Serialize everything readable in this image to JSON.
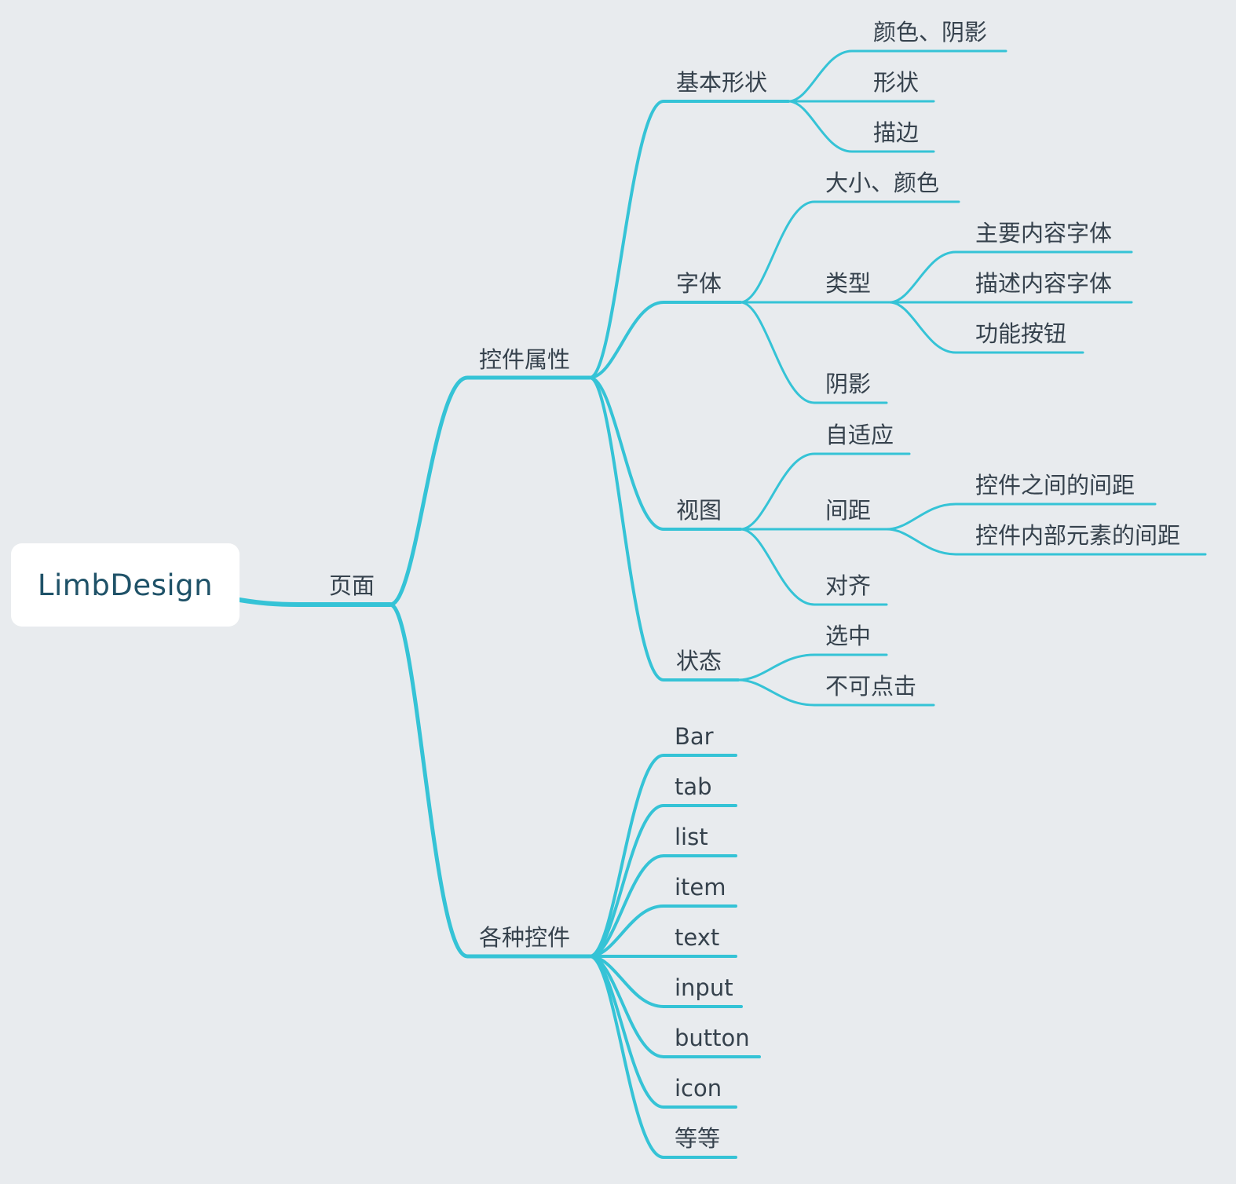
{
  "colors": {
    "background": "#e8ebee",
    "branch": "#35c3d6",
    "root_fill": "#ffffff",
    "root_text": "#1f5268",
    "label_text": "#36424d"
  },
  "root": {
    "id": "root",
    "label": "LimbDesign"
  },
  "nodes": [
    {
      "id": "page",
      "parent": "root",
      "label": "页面",
      "level": 1
    },
    {
      "id": "props",
      "parent": "page",
      "label": "控件属性",
      "level": 2
    },
    {
      "id": "widgets",
      "parent": "page",
      "label": "各种控件",
      "level": 2
    },
    {
      "id": "shape",
      "parent": "props",
      "label": "基本形状",
      "level": 3
    },
    {
      "id": "shape-color",
      "parent": "shape",
      "label": "颜色、阴影",
      "level": 4
    },
    {
      "id": "shape-form",
      "parent": "shape",
      "label": "形状",
      "level": 4
    },
    {
      "id": "shape-stroke",
      "parent": "shape",
      "label": "描边",
      "level": 4
    },
    {
      "id": "font",
      "parent": "props",
      "label": "字体",
      "level": 3
    },
    {
      "id": "font-size",
      "parent": "font",
      "label": "大小、颜色",
      "level": 4
    },
    {
      "id": "font-type",
      "parent": "font",
      "label": "类型",
      "level": 4
    },
    {
      "id": "font-type-main",
      "parent": "font-type",
      "label": "主要内容字体",
      "level": 5
    },
    {
      "id": "font-type-desc",
      "parent": "font-type",
      "label": "描述内容字体",
      "level": 5
    },
    {
      "id": "font-type-button",
      "parent": "font-type",
      "label": "功能按钮",
      "level": 5
    },
    {
      "id": "font-shadow",
      "parent": "font",
      "label": "阴影",
      "level": 4
    },
    {
      "id": "view",
      "parent": "props",
      "label": "视图",
      "level": 3
    },
    {
      "id": "view-adapt",
      "parent": "view",
      "label": "自适应",
      "level": 4
    },
    {
      "id": "view-spacing",
      "parent": "view",
      "label": "间距",
      "level": 4
    },
    {
      "id": "view-spacing-between",
      "parent": "view-spacing",
      "label": "控件之间的间距",
      "level": 5
    },
    {
      "id": "view-spacing-inner",
      "parent": "view-spacing",
      "label": "控件内部元素的间距",
      "level": 5
    },
    {
      "id": "view-align",
      "parent": "view",
      "label": "对齐",
      "level": 4
    },
    {
      "id": "state",
      "parent": "props",
      "label": "状态",
      "level": 3
    },
    {
      "id": "state-selected",
      "parent": "state",
      "label": "选中",
      "level": 4
    },
    {
      "id": "state-disabled",
      "parent": "state",
      "label": "不可点击",
      "level": 4
    },
    {
      "id": "w-bar",
      "parent": "widgets",
      "label": "Bar",
      "level": 3
    },
    {
      "id": "w-tab",
      "parent": "widgets",
      "label": "tab",
      "level": 3
    },
    {
      "id": "w-list",
      "parent": "widgets",
      "label": "list",
      "level": 3
    },
    {
      "id": "w-item",
      "parent": "widgets",
      "label": "item",
      "level": 3
    },
    {
      "id": "w-text",
      "parent": "widgets",
      "label": "text",
      "level": 3
    },
    {
      "id": "w-input",
      "parent": "widgets",
      "label": "input",
      "level": 3
    },
    {
      "id": "w-button",
      "parent": "widgets",
      "label": "button",
      "level": 3
    },
    {
      "id": "w-icon",
      "parent": "widgets",
      "label": "icon",
      "level": 3
    },
    {
      "id": "w-etc",
      "parent": "widgets",
      "label": "等等",
      "level": 3
    }
  ]
}
